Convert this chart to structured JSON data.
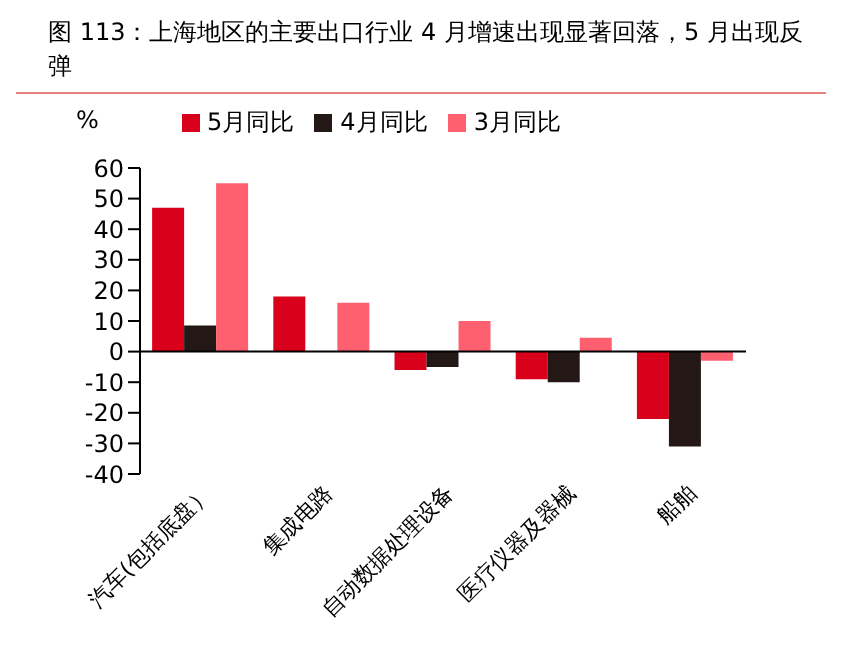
{
  "chart_data": {
    "type": "bar",
    "title": "图 113：上海地区的主要出口行业 4 月增速出现显著回落，5 月出现反弹",
    "ylabel": "%",
    "categories": [
      "汽车(包括底盘）",
      "集成电路",
      "自动数据处理设备",
      "医疗仪器及器械",
      "船舶"
    ],
    "series": [
      {
        "name": "5月同比",
        "color": "#d9001b",
        "values": [
          47,
          18,
          -6,
          -9,
          -22
        ]
      },
      {
        "name": "4月同比",
        "color": "#231815",
        "values": [
          8.5,
          null,
          -5,
          -10,
          -31
        ]
      },
      {
        "name": "3月同比",
        "color": "#ff6070",
        "values": [
          55,
          16,
          10,
          4.5,
          -3
        ]
      }
    ],
    "ylim": [
      -40,
      60
    ],
    "yticks": [
      -40,
      -30,
      -20,
      -10,
      0,
      10,
      20,
      30,
      40,
      50,
      60
    ],
    "grid": false,
    "legend": "top",
    "ref_lines": [
      {
        "axis": "y",
        "value": 0,
        "color": "#000000"
      }
    ]
  }
}
